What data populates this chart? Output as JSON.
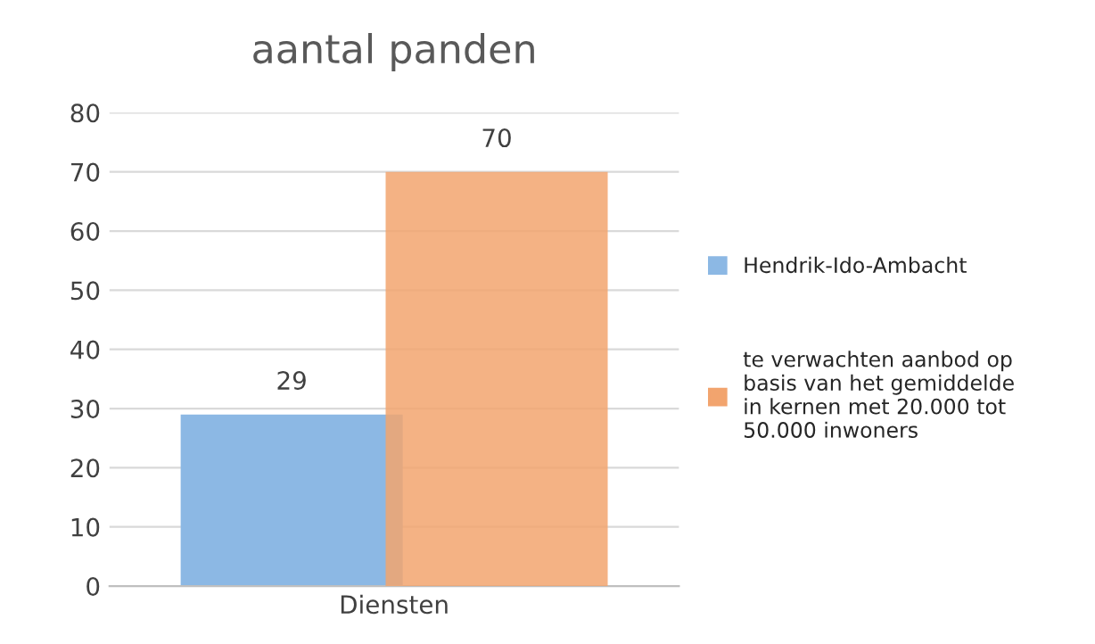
{
  "chart_data": {
    "type": "bar",
    "title": "aantal panden",
    "categories": [
      "Diensten"
    ],
    "series": [
      {
        "name": "Hendrik-Ido-Ambacht",
        "color": "#8cb8e4",
        "values": [
          29
        ]
      },
      {
        "name": "te verwachten aanbod op basis van het gemiddelde in kernen met 20.000 tot 50.000 inwoners",
        "color": "#f2a46e",
        "values": [
          70
        ]
      }
    ],
    "ylim": [
      0,
      80
    ],
    "yticks": [
      0,
      10,
      20,
      30,
      40,
      50,
      60,
      70,
      80
    ],
    "grid": "y",
    "legend": "right",
    "data_labels": true
  }
}
